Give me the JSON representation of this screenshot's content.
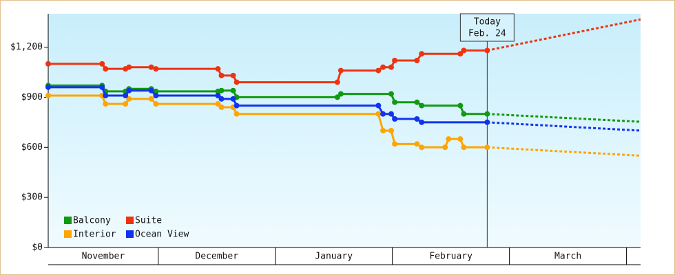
{
  "chart_data": {
    "type": "line",
    "categories": [
      "November",
      "December",
      "January",
      "February",
      "March"
    ],
    "xlim": [
      0.06,
      5.12
    ],
    "ylim": [
      0,
      1400
    ],
    "yticks": [
      {
        "value": 0,
        "label": "$0"
      },
      {
        "value": 300,
        "label": "$300"
      },
      {
        "value": 600,
        "label": "$600"
      },
      {
        "value": 900,
        "label": "$900"
      },
      {
        "value": 1200,
        "label": "$1,200"
      }
    ],
    "legend": "lower left",
    "annotation": {
      "x": 3.81,
      "lines": [
        "Today",
        "Feb. 24"
      ]
    },
    "series": [
      {
        "name": "Balcony",
        "color": "#119911",
        "x": [
          0.06,
          0.52,
          0.55,
          0.72,
          0.75,
          0.94,
          0.98,
          1.51,
          1.54,
          1.64,
          1.67,
          2.53,
          2.56,
          2.99,
          3.02,
          3.21,
          3.25,
          3.58,
          3.61,
          3.81
        ],
        "values": [
          970,
          970,
          935,
          935,
          950,
          950,
          935,
          935,
          940,
          940,
          900,
          900,
          920,
          920,
          870,
          870,
          850,
          850,
          800,
          800
        ],
        "forecast_x": [
          3.81,
          5.12
        ],
        "forecast_values": [
          800,
          753
        ]
      },
      {
        "name": "Suite",
        "color": "#ee3311",
        "x": [
          0.06,
          0.52,
          0.55,
          0.72,
          0.75,
          0.94,
          0.98,
          1.51,
          1.54,
          1.64,
          1.67,
          2.53,
          2.56,
          2.88,
          2.92,
          2.99,
          3.02,
          3.21,
          3.25,
          3.58,
          3.61,
          3.81
        ],
        "values": [
          1100,
          1100,
          1070,
          1070,
          1080,
          1080,
          1070,
          1070,
          1030,
          1030,
          990,
          990,
          1060,
          1060,
          1080,
          1080,
          1120,
          1120,
          1160,
          1160,
          1180,
          1180
        ],
        "forecast_x": [
          3.81,
          5.12
        ],
        "forecast_values": [
          1180,
          1366
        ]
      },
      {
        "name": "Interior",
        "color": "#ffa500",
        "x": [
          0.06,
          0.52,
          0.55,
          0.72,
          0.75,
          0.94,
          0.98,
          1.51,
          1.54,
          1.64,
          1.67,
          2.88,
          2.92,
          2.99,
          3.02,
          3.21,
          3.25,
          3.45,
          3.48,
          3.58,
          3.61,
          3.81
        ],
        "values": [
          910,
          910,
          860,
          860,
          890,
          890,
          860,
          860,
          840,
          840,
          800,
          800,
          700,
          700,
          620,
          620,
          600,
          600,
          650,
          650,
          600,
          600
        ],
        "forecast_x": [
          3.81,
          5.12
        ],
        "forecast_values": [
          600,
          550
        ]
      },
      {
        "name": "Ocean View",
        "color": "#1133ee",
        "x": [
          0.06,
          0.52,
          0.55,
          0.72,
          0.75,
          0.94,
          0.98,
          1.51,
          1.54,
          1.64,
          1.67,
          2.88,
          2.92,
          2.99,
          3.02,
          3.21,
          3.25,
          3.81
        ],
        "values": [
          960,
          960,
          910,
          910,
          940,
          940,
          910,
          910,
          890,
          890,
          850,
          850,
          800,
          800,
          770,
          770,
          750,
          750
        ],
        "forecast_x": [
          3.81,
          5.12
        ],
        "forecast_values": [
          750,
          700
        ]
      }
    ]
  }
}
